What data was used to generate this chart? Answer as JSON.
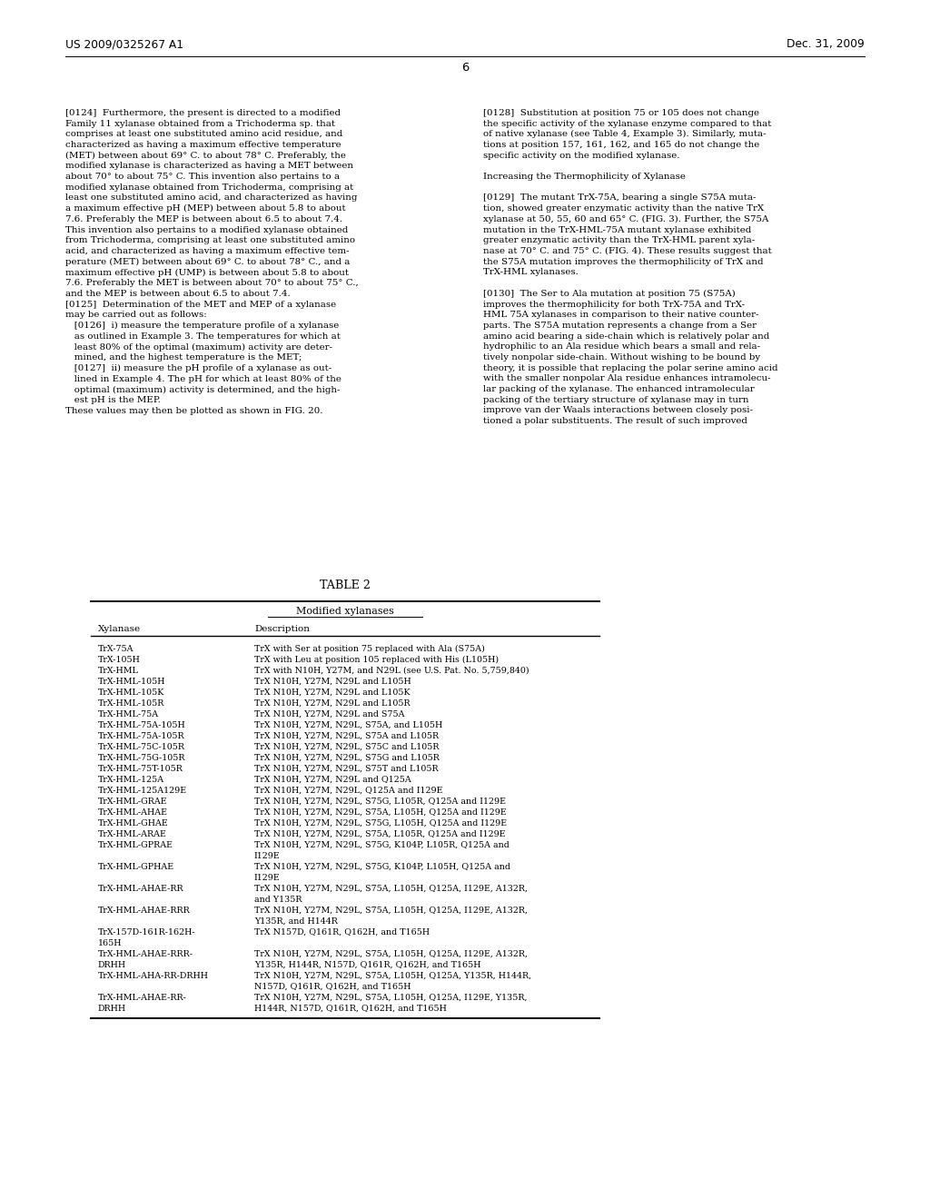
{
  "header_left": "US 2009/0325267 A1",
  "header_right": "Dec. 31, 2009",
  "page_number": "6",
  "background_color": "#ffffff",
  "left_text": "[0124]  Furthermore, the present is directed to a modified\nFamily 11 xylanase obtained from a Trichoderma sp. that\ncomprises at least one substituted amino acid residue, and\ncharacterized as having a maximum effective temperature\n(MET) between about 69° C. to about 78° C. Preferably, the\nmodified xylanase is characterized as having a MET between\nabout 70° to about 75° C. This invention also pertains to a\nmodified xylanase obtained from Trichoderma, comprising at\nleast one substituted amino acid, and characterized as having\na maximum effective pH (MEP) between about 5.8 to about\n7.6. Preferably the MEP is between about 6.5 to about 7.4.\nThis invention also pertains to a modified xylanase obtained\nfrom Trichoderma, comprising at least one substituted amino\nacid, and characterized as having a maximum effective tem-\nperature (MET) between about 69° C. to about 78° C., and a\nmaximum effective pH (UMP) is between about 5.8 to about\n7.6. Preferably the MET is between about 70° to about 75° C.,\nand the MEP is between about 6.5 to about 7.4.\n[0125]  Determination of the MET and MEP of a xylanase\nmay be carried out as follows:\n   [0126]  i) measure the temperature profile of a xylanase\n   as outlined in Example 3. The temperatures for which at\n   least 80% of the optimal (maximum) activity are deter-\n   mined, and the highest temperature is the MET;\n   [0127]  ii) measure the pH profile of a xylanase as out-\n   lined in Example 4. The pH for which at least 80% of the\n   optimal (maximum) activity is determined, and the high-\n   est pH is the MEP.\nThese values may then be plotted as shown in FIG. 20.",
  "right_text": "[0128]  Substitution at position 75 or 105 does not change\nthe specific activity of the xylanase enzyme compared to that\nof native xylanase (see Table 4, Example 3). Similarly, muta-\ntions at position 157, 161, 162, and 165 do not change the\nspecific activity on the modified xylanase.\n\nIncreasing the Thermophilicity of Xylanase\n\n[0129]  The mutant TrX-75A, bearing a single S75A muta-\ntion, showed greater enzymatic activity than the native TrX\nxylanase at 50, 55, 60 and 65° C. (FIG. 3). Further, the S75A\nmutation in the TrX-HML-75A mutant xylanase exhibited\ngreater enzymatic activity than the TrX-HML parent xyla-\nnase at 70° C. and 75° C. (FIG. 4). These results suggest that\nthe S75A mutation improves the thermophilicity of TrX and\nTrX-HML xylanases.\n\n[0130]  The Ser to Ala mutation at position 75 (S75A)\nimproves the thermophilicity for both TrX-75A and TrX-\nHML 75A xylanases in comparison to their native counter-\nparts. The S75A mutation represents a change from a Ser\namino acid bearing a side-chain which is relatively polar and\nhydrophilic to an Ala residue which bears a small and rela-\ntively nonpolar side-chain. Without wishing to be bound by\ntheory, it is possible that replacing the polar serine amino acid\nwith the smaller nonpolar Ala residue enhances intramolecu-\nlar packing of the xylanase. The enhanced intramolecular\npacking of the tertiary structure of xylanase may in turn\nimprove van der Waals interactions between closely posi-\ntioned a polar substituents. The result of such improved",
  "table_title": "TABLE 2",
  "table_subtitle": "Modified xylanases",
  "table_col1_header": "Xylanase",
  "table_col2_header": "Description",
  "table_rows": [
    [
      "TrX-75A",
      "TrX with Ser at position 75 replaced with Ala (S75A)",
      1
    ],
    [
      "TrX-105H",
      "TrX with Leu at position 105 replaced with His (L105H)",
      1
    ],
    [
      "TrX-HML",
      "TrX with N10H, Y27M, and N29L (see U.S. Pat. No. 5,759,840)",
      1
    ],
    [
      "TrX-HML-105H",
      "TrX N10H, Y27M, N29L and L105H",
      1
    ],
    [
      "TrX-HML-105K",
      "TrX N10H, Y27M, N29L and L105K",
      1
    ],
    [
      "TrX-HML-105R",
      "TrX N10H, Y27M, N29L and L105R",
      1
    ],
    [
      "TrX-HML-75A",
      "TrX N10H, Y27M, N29L and S75A",
      1
    ],
    [
      "TrX-HML-75A-105H",
      "TrX N10H, Y27M, N29L, S75A, and L105H",
      1
    ],
    [
      "TrX-HML-75A-105R",
      "TrX N10H, Y27M, N29L, S75A and L105R",
      1
    ],
    [
      "TrX-HML-75C-105R",
      "TrX N10H, Y27M, N29L, S75C and L105R",
      1
    ],
    [
      "TrX-HML-75G-105R",
      "TrX N10H, Y27M, N29L, S75G and L105R",
      1
    ],
    [
      "TrX-HML-75T-105R",
      "TrX N10H, Y27M, N29L, S75T and L105R",
      1
    ],
    [
      "TrX-HML-125A",
      "TrX N10H, Y27M, N29L and Q125A",
      1
    ],
    [
      "TrX-HML-125A129E",
      "TrX N10H, Y27M, N29L, Q125A and I129E",
      1
    ],
    [
      "TrX-HML-GRAE",
      "TrX N10H, Y27M, N29L, S75G, L105R, Q125A and I129E",
      1
    ],
    [
      "TrX-HML-AHAE",
      "TrX N10H, Y27M, N29L, S75A, L105H, Q125A and I129E",
      1
    ],
    [
      "TrX-HML-GHAE",
      "TrX N10H, Y27M, N29L, S75G, L105H, Q125A and I129E",
      1
    ],
    [
      "TrX-HML-ARAE",
      "TrX N10H, Y27M, N29L, S75A, L105R, Q125A and I129E",
      1
    ],
    [
      "TrX-HML-GPRAE",
      "TrX N10H, Y27M, N29L, S75G, K104P, L105R, Q125A and\nI129E",
      2
    ],
    [
      "TrX-HML-GPHAE",
      "TrX N10H, Y27M, N29L, S75G, K104P, L105H, Q125A and\nI129E",
      2
    ],
    [
      "TrX-HML-AHAE-RR",
      "TrX N10H, Y27M, N29L, S75A, L105H, Q125A, I129E, A132R,\nand Y135R",
      2
    ],
    [
      "TrX-HML-AHAE-RRR",
      "TrX N10H, Y27M, N29L, S75A, L105H, Q125A, I129E, A132R,\nY135R, and H144R",
      2
    ],
    [
      "TrX-157D-161R-162H-\n165H",
      "TrX N157D, Q161R, Q162H, and T165H",
      2
    ],
    [
      "TrX-HML-AHAE-RRR-\nDRHH",
      "TrX N10H, Y27M, N29L, S75A, L105H, Q125A, I129E, A132R,\nY135R, H144R, N157D, Q161R, Q162H, and T165H",
      2
    ],
    [
      "TrX-HML-AHA-RR-DRHH",
      "TrX N10H, Y27M, N29L, S75A, L105H, Q125A, Y135R, H144R,\nN157D, Q161R, Q162H, and T165H",
      2
    ],
    [
      "TrX-HML-AHAE-RR-\nDRHH",
      "TrX N10H, Y27M, N29L, S75A, L105H, Q125A, I129E, Y135R,\nH144R, N157D, Q161R, Q162H, and T165H",
      2
    ]
  ]
}
